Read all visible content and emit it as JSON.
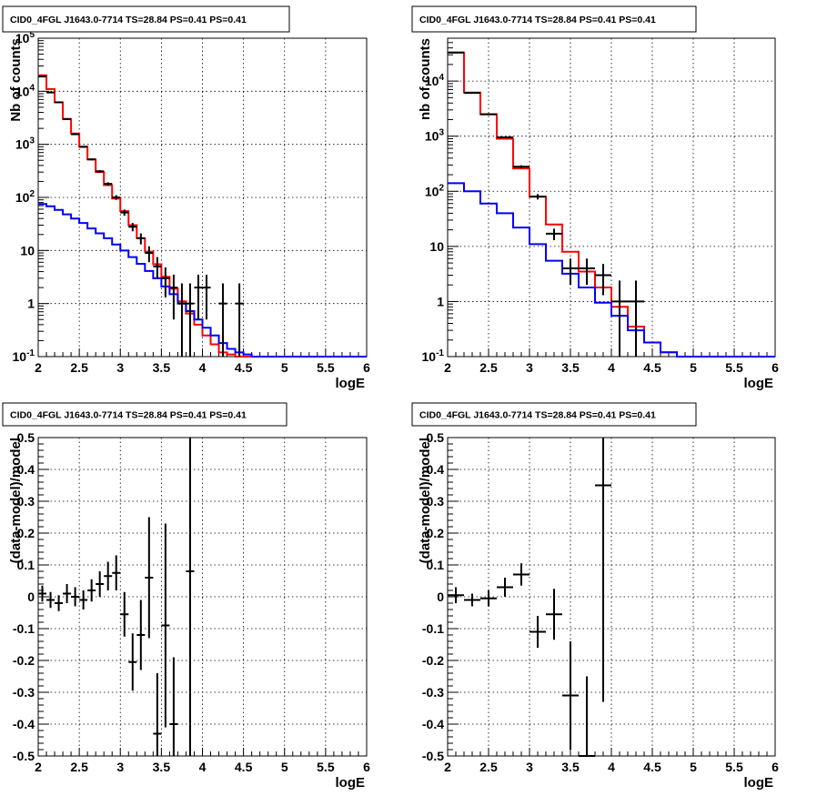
{
  "chart_data": [
    {
      "type": "line",
      "title": "CID0_4FGL J1643.0-7714 TS=28.84 PS=0.41 PS=0.41",
      "xlabel": "logE",
      "ylabel": "Nb of counts",
      "x_scale": "linear",
      "y_scale": "log",
      "xlim": [
        2,
        6
      ],
      "ylim": [
        0.1,
        100000
      ],
      "grid": true,
      "x_ticks": [
        "2",
        "2.5",
        "3",
        "3.5",
        "4",
        "4.5",
        "5",
        "5.5",
        "6"
      ],
      "y_ticks": [
        "10^-1",
        "1",
        "10",
        "10^2",
        "10^3",
        "10^4",
        "10^5"
      ],
      "colors": {
        "data": "#000000",
        "total_model": "#ff0000",
        "background_model": "#0000ff"
      },
      "bin_edges": [
        2.0,
        2.1,
        2.2,
        2.3,
        2.4,
        2.5,
        2.6,
        2.7,
        2.8,
        2.9,
        3.0,
        3.1,
        3.2,
        3.3,
        3.4,
        3.5,
        3.6,
        3.7,
        3.8,
        3.9,
        4.0,
        4.1,
        4.2,
        4.3,
        4.4,
        4.5,
        4.6,
        4.7,
        4.8,
        4.9,
        5.0,
        5.1,
        5.2,
        5.3,
        5.4,
        5.5,
        5.6,
        5.7,
        5.8,
        5.9,
        6.0
      ],
      "series": [
        {
          "style": "step",
          "color": "#ff0000",
          "values": [
            20000,
            11000,
            6200,
            3000,
            1600,
            900,
            520,
            300,
            170,
            95,
            55,
            30,
            17,
            9.5,
            5.5,
            3.2,
            1.9,
            1.1,
            0.65,
            0.4,
            0.25,
            0.17,
            0.12,
            0.11,
            0.1,
            0.1,
            0.1,
            0.1,
            0.1,
            0.1,
            0.1,
            0.1,
            0.1,
            0.1,
            0.1,
            0.1,
            0.1,
            0.1,
            0.1,
            0.1
          ]
        },
        {
          "style": "step",
          "color": "#0000ff",
          "values": [
            75,
            68,
            58,
            48,
            40,
            33,
            26,
            21,
            17,
            13,
            10,
            7.5,
            5.6,
            4.1,
            3.0,
            2.1,
            1.5,
            1.0,
            0.72,
            0.5,
            0.35,
            0.25,
            0.18,
            0.14,
            0.12,
            0.11,
            0.1,
            0.1,
            0.1,
            0.1,
            0.1,
            0.1,
            0.1,
            0.1,
            0.1,
            0.1,
            0.1,
            0.1,
            0.1,
            0.1
          ]
        },
        {
          "style": "errorbars",
          "color": "#000000",
          "points": [
            {
              "x": 2.05,
              "y": 19000,
              "ylo": 18800,
              "yhi": 19200
            },
            {
              "x": 2.15,
              "y": 9500,
              "ylo": 9400,
              "yhi": 9600
            },
            {
              "x": 2.25,
              "y": 6200,
              "ylo": 6100,
              "yhi": 6300
            },
            {
              "x": 2.35,
              "y": 3000,
              "ylo": 2950,
              "yhi": 3050
            },
            {
              "x": 2.45,
              "y": 1550,
              "ylo": 1500,
              "yhi": 1600
            },
            {
              "x": 2.55,
              "y": 900,
              "ylo": 870,
              "yhi": 930
            },
            {
              "x": 2.65,
              "y": 520,
              "ylo": 500,
              "yhi": 540
            },
            {
              "x": 2.75,
              "y": 310,
              "ylo": 292,
              "yhi": 328
            },
            {
              "x": 2.85,
              "y": 180,
              "ylo": 167,
              "yhi": 193
            },
            {
              "x": 2.95,
              "y": 100,
              "ylo": 90,
              "yhi": 110
            },
            {
              "x": 3.05,
              "y": 52,
              "ylo": 45,
              "yhi": 59
            },
            {
              "x": 3.15,
              "y": 28,
              "ylo": 23,
              "yhi": 33
            },
            {
              "x": 3.25,
              "y": 17,
              "ylo": 13,
              "yhi": 21
            },
            {
              "x": 3.35,
              "y": 9,
              "ylo": 6,
              "yhi": 12
            },
            {
              "x": 3.45,
              "y": 5,
              "ylo": 3,
              "yhi": 7.5
            },
            {
              "x": 3.55,
              "y": 3,
              "ylo": 1.3,
              "yhi": 4.8
            },
            {
              "x": 3.65,
              "y": 2,
              "ylo": 0.5,
              "yhi": 3.5
            },
            {
              "x": 3.75,
              "y": 1,
              "ylo": 0.1,
              "yhi": 2.4
            },
            {
              "x": 3.85,
              "y": 1,
              "ylo": 0.1,
              "yhi": 2.4
            },
            {
              "x": 3.95,
              "y": 2,
              "ylo": 0.5,
              "yhi": 3.5
            },
            {
              "x": 4.05,
              "y": 2,
              "ylo": 0.5,
              "yhi": 3.5
            },
            {
              "x": 4.25,
              "y": 1,
              "ylo": 0.1,
              "yhi": 2.4
            },
            {
              "x": 4.45,
              "y": 1,
              "ylo": 0.1,
              "yhi": 2.4
            }
          ]
        }
      ]
    },
    {
      "type": "line",
      "title": "CID0_4FGL J1643.0-7714 TS=28.84 PS=0.41 PS=0.41",
      "xlabel": "logE",
      "ylabel": "nb of counts",
      "x_scale": "linear",
      "y_scale": "log",
      "xlim": [
        2,
        6
      ],
      "ylim": [
        0.1,
        60000
      ],
      "grid": true,
      "x_ticks": [
        "2",
        "2.5",
        "3",
        "3.5",
        "4",
        "4.5",
        "5",
        "5.5",
        "6"
      ],
      "y_ticks": [
        "10^-1",
        "1",
        "10",
        "10^2",
        "10^3",
        "10^4"
      ],
      "colors": {
        "data": "#000000",
        "total_model": "#ff0000",
        "background_model": "#0000ff"
      },
      "bin_edges": [
        2.0,
        2.2,
        2.4,
        2.6,
        2.8,
        3.0,
        3.2,
        3.4,
        3.6,
        3.8,
        4.0,
        4.2,
        4.4,
        4.6,
        4.8,
        5.0,
        5.2,
        5.4,
        5.6,
        5.8,
        6.0
      ],
      "series": [
        {
          "style": "step",
          "color": "#ff0000",
          "values": [
            33000,
            6200,
            2500,
            900,
            260,
            80,
            25,
            8,
            3.5,
            1.8,
            0.8,
            0.35,
            0.18,
            0.12,
            0.1,
            0.1,
            0.1,
            0.1,
            0.1,
            0.1
          ]
        },
        {
          "style": "step",
          "color": "#0000ff",
          "values": [
            140,
            100,
            60,
            40,
            22,
            11,
            5.5,
            3.2,
            1.8,
            0.95,
            0.55,
            0.3,
            0.18,
            0.12,
            0.1,
            0.1,
            0.1,
            0.1,
            0.1,
            0.1
          ]
        },
        {
          "style": "errorbars",
          "color": "#000000",
          "points": [
            {
              "x": 2.1,
              "y": 33000,
              "ylo": 32800,
              "yhi": 33200
            },
            {
              "x": 2.3,
              "y": 6100,
              "ylo": 6000,
              "yhi": 6200
            },
            {
              "x": 2.5,
              "y": 2500,
              "ylo": 2450,
              "yhi": 2550
            },
            {
              "x": 2.7,
              "y": 950,
              "ylo": 920,
              "yhi": 980
            },
            {
              "x": 2.9,
              "y": 280,
              "ylo": 263,
              "yhi": 297
            },
            {
              "x": 3.1,
              "y": 80,
              "ylo": 71,
              "yhi": 89
            },
            {
              "x": 3.3,
              "y": 17,
              "ylo": 13,
              "yhi": 21
            },
            {
              "x": 3.5,
              "y": 4,
              "ylo": 2,
              "yhi": 6
            },
            {
              "x": 3.7,
              "y": 4,
              "ylo": 2,
              "yhi": 6
            },
            {
              "x": 3.9,
              "y": 3,
              "ylo": 1.3,
              "yhi": 4.8
            },
            {
              "x": 4.1,
              "y": 1,
              "ylo": 0.1,
              "yhi": 2.4
            },
            {
              "x": 4.3,
              "y": 1,
              "ylo": 0.1,
              "yhi": 2.4
            }
          ]
        }
      ]
    },
    {
      "type": "scatter",
      "title": "CID0_4FGL J1643.0-7714 TS=28.84 PS=0.41 PS=0.41",
      "xlabel": "logE",
      "ylabel": "(data-model)/model",
      "x_scale": "linear",
      "y_scale": "linear",
      "xlim": [
        2,
        6
      ],
      "ylim": [
        -0.5,
        0.5
      ],
      "grid": true,
      "x_ticks": [
        "2",
        "2.5",
        "3",
        "3.5",
        "4",
        "4.5",
        "5",
        "5.5",
        "6"
      ],
      "y_ticks": [
        "-0.5",
        "-0.4",
        "-0.3",
        "-0.2",
        "-0.1",
        "0",
        "0.1",
        "0.2",
        "0.3",
        "0.4",
        "0.5"
      ],
      "series": [
        {
          "style": "errorbars",
          "color": "#000000",
          "points": [
            {
              "x": 2.05,
              "y": 0.01,
              "yerr": 0.025
            },
            {
              "x": 2.15,
              "y": -0.01,
              "yerr": 0.025
            },
            {
              "x": 2.25,
              "y": -0.02,
              "yerr": 0.025
            },
            {
              "x": 2.35,
              "y": 0.01,
              "yerr": 0.03
            },
            {
              "x": 2.45,
              "y": 0.0,
              "yerr": 0.03
            },
            {
              "x": 2.55,
              "y": -0.01,
              "yerr": 0.03
            },
            {
              "x": 2.65,
              "y": 0.02,
              "yerr": 0.035
            },
            {
              "x": 2.75,
              "y": 0.04,
              "yerr": 0.04
            },
            {
              "x": 2.85,
              "y": 0.065,
              "yerr": 0.045
            },
            {
              "x": 2.95,
              "y": 0.075,
              "yerr": 0.055
            },
            {
              "x": 3.05,
              "y": -0.055,
              "yerr": 0.07
            },
            {
              "x": 3.15,
              "y": -0.205,
              "yerr": 0.09
            },
            {
              "x": 3.25,
              "y": -0.12,
              "yerr": 0.11
            },
            {
              "x": 3.35,
              "y": 0.06,
              "yerr": 0.19
            },
            {
              "x": 3.45,
              "y": -0.43,
              "yerr": 0.19
            },
            {
              "x": 3.55,
              "y": -0.09,
              "yerr": 0.32
            },
            {
              "x": 3.65,
              "y": -0.4,
              "yerr": 0.21
            },
            {
              "x": 3.85,
              "y": 0.08,
              "yerr": 0.58
            }
          ]
        }
      ]
    },
    {
      "type": "scatter",
      "title": "CID0_4FGL J1643.0-7714 TS=28.84 PS=0.41 PS=0.41",
      "xlabel": "logE",
      "ylabel": "(data-model)/model",
      "x_scale": "linear",
      "y_scale": "linear",
      "xlim": [
        2,
        6
      ],
      "ylim": [
        -0.5,
        0.5
      ],
      "grid": true,
      "x_ticks": [
        "2",
        "2.5",
        "3",
        "3.5",
        "4",
        "4.5",
        "5",
        "5.5",
        "6"
      ],
      "y_ticks": [
        "-0.5",
        "-0.4",
        "-0.3",
        "-0.2",
        "-0.1",
        "0",
        "0.1",
        "0.2",
        "0.3",
        "0.4",
        "0.5"
      ],
      "series": [
        {
          "style": "errorbars",
          "color": "#000000",
          "points": [
            {
              "x": 2.1,
              "y": 0.005,
              "yerr": 0.025
            },
            {
              "x": 2.3,
              "y": -0.01,
              "yerr": 0.02
            },
            {
              "x": 2.5,
              "y": -0.005,
              "yerr": 0.025
            },
            {
              "x": 2.7,
              "y": 0.03,
              "yerr": 0.03
            },
            {
              "x": 2.9,
              "y": 0.07,
              "yerr": 0.035
            },
            {
              "x": 3.1,
              "y": -0.11,
              "yerr": 0.05
            },
            {
              "x": 3.3,
              "y": -0.055,
              "yerr": 0.08
            },
            {
              "x": 3.5,
              "y": -0.31,
              "yerr": 0.17
            },
            {
              "x": 3.7,
              "y": -0.5,
              "yerr": 0.25
            },
            {
              "x": 3.9,
              "y": 0.35,
              "yerr": 0.68
            }
          ]
        }
      ]
    }
  ]
}
